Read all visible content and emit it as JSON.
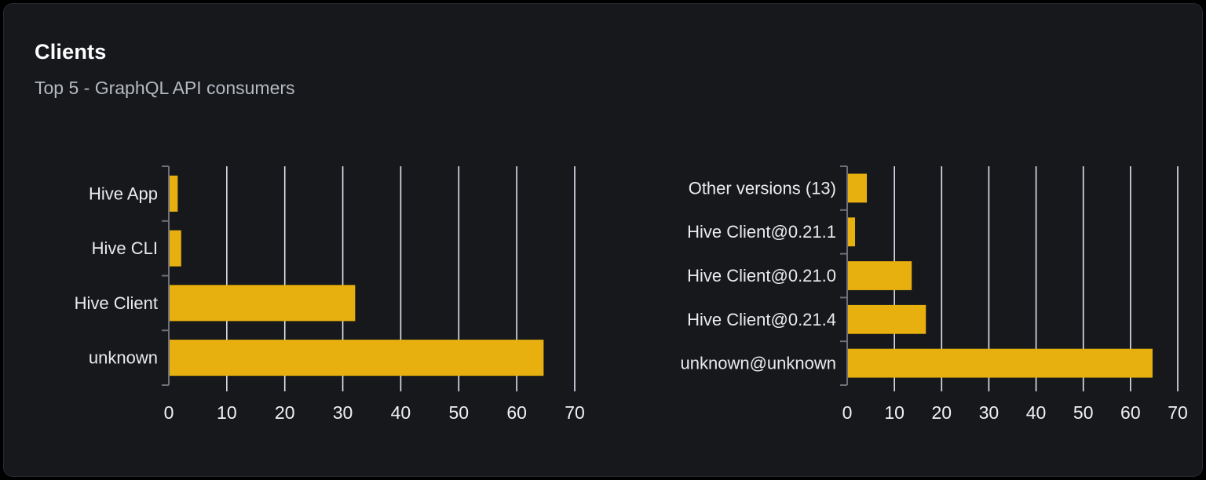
{
  "header": {
    "title": "Clients",
    "subtitle": "Top 5 - GraphQL API consumers"
  },
  "colors": {
    "page_bg": "#000000",
    "card_bg": "#16181c",
    "card_border": "#262a31",
    "title": "#ffffff",
    "subtitle": "#b6bac1",
    "bar": "#e8b00e",
    "gridline": "#dfe4ef",
    "axis": "#6e7079",
    "category_label": "#e9ebee",
    "tick_label": "#f0f1f4"
  },
  "chart_data": [
    {
      "type": "bar",
      "orientation": "horizontal",
      "title": "",
      "xlabel": "",
      "ylabel": "",
      "categories": [
        "Hive App",
        "Hive CLI",
        "Hive Client",
        "unknown"
      ],
      "values": [
        1.4,
        2,
        32,
        64.5
      ],
      "xlim": [
        0,
        70
      ],
      "xticks": [
        0,
        10,
        20,
        30,
        40,
        50,
        60,
        70
      ],
      "grid": true,
      "legend": false
    },
    {
      "type": "bar",
      "orientation": "horizontal",
      "title": "",
      "xlabel": "",
      "ylabel": "",
      "categories": [
        "Other versions (13)",
        "Hive Client@0.21.1",
        "Hive Client@0.21.0",
        "Hive Client@0.21.4",
        "unknown@unknown"
      ],
      "values": [
        4,
        1.5,
        13.5,
        16.5,
        64.5
      ],
      "xlim": [
        0,
        70
      ],
      "xticks": [
        0,
        10,
        20,
        30,
        40,
        50,
        60,
        70
      ],
      "grid": true,
      "legend": false
    }
  ]
}
